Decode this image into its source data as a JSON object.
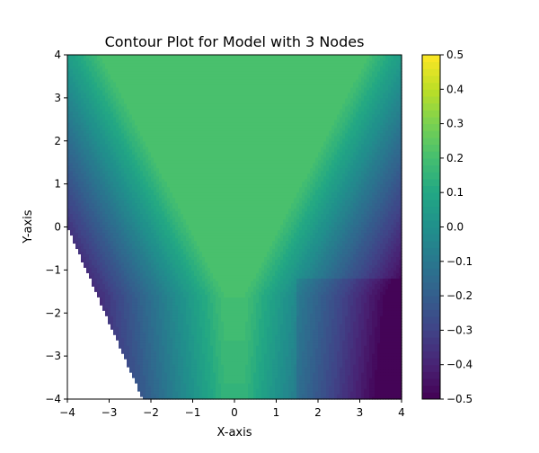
{
  "chart_data": {
    "type": "contour",
    "title": "Contour Plot for Model with 3 Nodes",
    "xlabel": "X-axis",
    "ylabel": "Y-axis",
    "xlim": [
      -4,
      4
    ],
    "ylim": [
      -4,
      4
    ],
    "x_ticks": [
      -4,
      -3,
      -2,
      -1,
      0,
      1,
      2,
      3,
      4
    ],
    "y_ticks": [
      -4,
      -3,
      -2,
      -1,
      0,
      1,
      2,
      3,
      4
    ],
    "x_tick_labels": [
      "−4",
      "−3",
      "−2",
      "−1",
      "0",
      "1",
      "2",
      "3",
      "4"
    ],
    "y_tick_labels": [
      "−4",
      "−3",
      "−2",
      "−1",
      "0",
      "1",
      "2",
      "3",
      "4"
    ],
    "colormap": "viridis",
    "colorbar": {
      "range": [
        -0.5,
        0.5
      ],
      "ticks": [
        -0.5,
        -0.4,
        -0.3,
        -0.2,
        -0.1,
        0.0,
        0.1,
        0.2,
        0.3,
        0.4,
        0.5
      ],
      "tick_labels": [
        "−0.5",
        "−0.4",
        "−0.3",
        "−0.2",
        "−0.1",
        "0.0",
        "0.1",
        "0.2",
        "0.3",
        "0.4",
        "0.5"
      ]
    },
    "masked_region": "lower-left triangle below line from (-4, 0) to (-2.2, -4)",
    "plateau_value": 0.2,
    "grid": false
  }
}
